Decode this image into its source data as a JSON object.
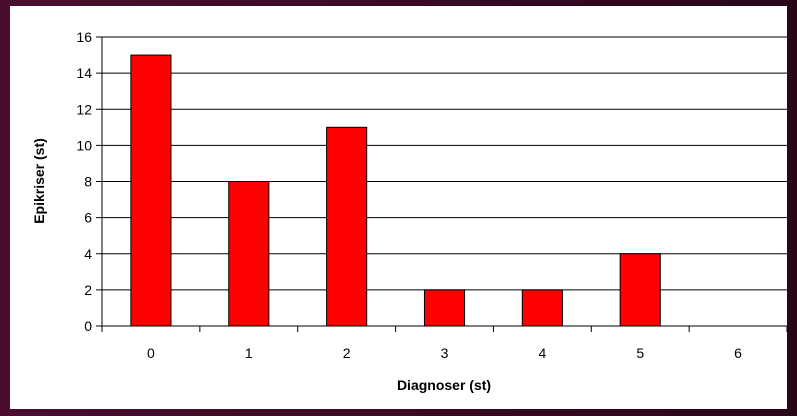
{
  "chart_data": {
    "type": "bar",
    "title": "",
    "xlabel": "Diagnoser (st)",
    "ylabel": "Epikriser (st)",
    "categories": [
      "0",
      "1",
      "2",
      "3",
      "4",
      "5",
      "6"
    ],
    "values": [
      15,
      8,
      11,
      2,
      2,
      4,
      0
    ],
    "ylim": [
      0,
      16
    ],
    "yticks": [
      "0",
      "2",
      "4",
      "6",
      "8",
      "10",
      "12",
      "14",
      "16"
    ],
    "grid": true,
    "legend": "none",
    "bar_color": "#ff0000",
    "bar_edge_color": "#000000"
  }
}
